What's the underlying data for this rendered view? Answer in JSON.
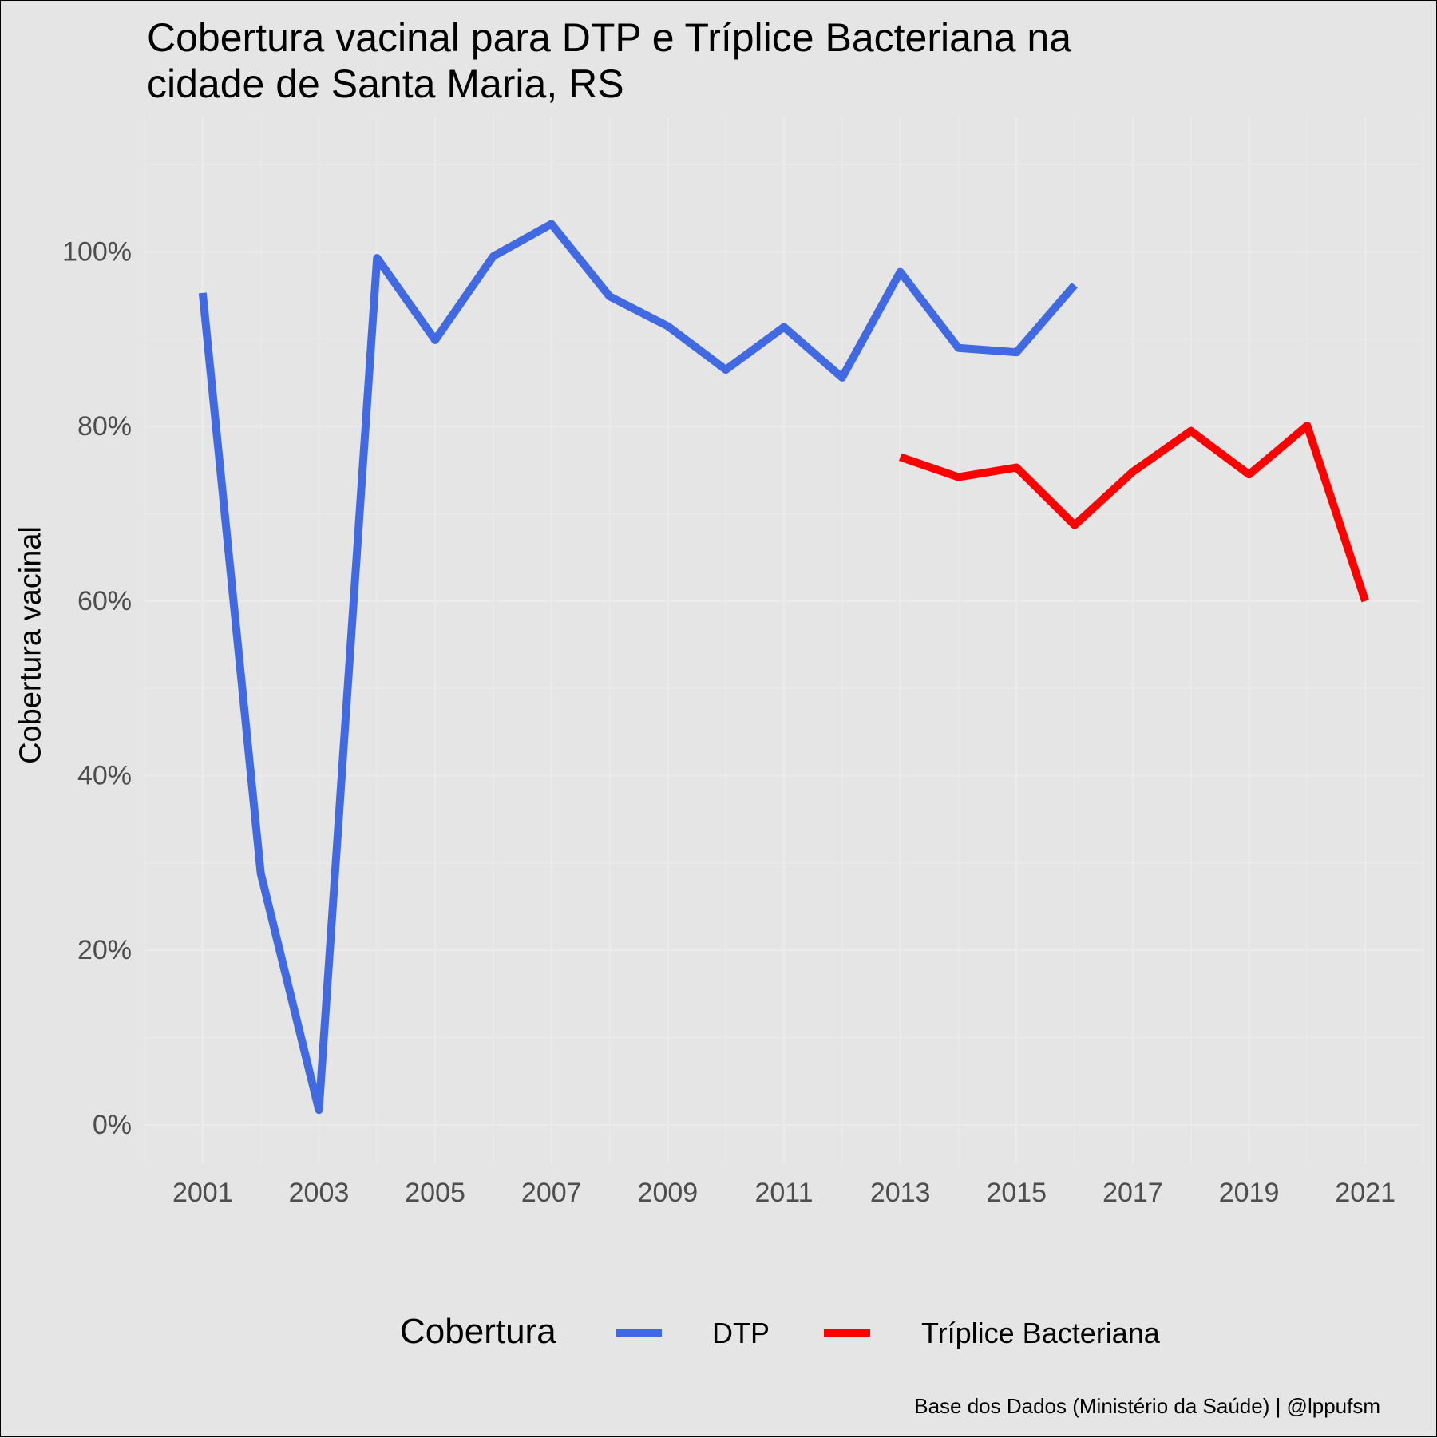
{
  "chart_data": {
    "type": "line",
    "title_lines": [
      "Cobertura vacinal para DTP e Tríplice Bacteriana na",
      "cidade de Santa Maria, RS"
    ],
    "xlabel": "",
    "ylabel": "Cobertura vacinal",
    "x_ticks": [
      "2001",
      "2003",
      "2005",
      "2007",
      "2009",
      "2011",
      "2013",
      "2015",
      "2017",
      "2019",
      "2021"
    ],
    "y_ticks": [
      "0%",
      "20%",
      "40%",
      "60%",
      "80%",
      "100%"
    ],
    "xlim": [
      2000,
      2022
    ],
    "ylim": [
      -0.045,
      1.155
    ],
    "grid": true,
    "legend_position": "bottom",
    "legend_title": "Cobertura",
    "series": [
      {
        "name": "DTP",
        "color": "#4169e1",
        "x": [
          2001,
          2002,
          2003,
          2004,
          2005,
          2006,
          2007,
          2008,
          2009,
          2010,
          2011,
          2012,
          2013,
          2014,
          2015,
          2016
        ],
        "values": [
          0.953,
          0.288,
          0.017,
          0.993,
          0.899,
          0.995,
          1.032,
          0.949,
          0.915,
          0.865,
          0.914,
          0.856,
          0.977,
          0.89,
          0.885,
          0.962
        ]
      },
      {
        "name": "Tríplice Bacteriana",
        "color": "#ff0000",
        "x": [
          2013,
          2014,
          2015,
          2016,
          2017,
          2018,
          2019,
          2020,
          2021
        ],
        "values": [
          0.765,
          0.742,
          0.753,
          0.687,
          0.748,
          0.795,
          0.745,
          0.801,
          0.6
        ]
      }
    ],
    "caption": "Base dos Dados (Ministério da Saúde) | @lppufsm"
  }
}
